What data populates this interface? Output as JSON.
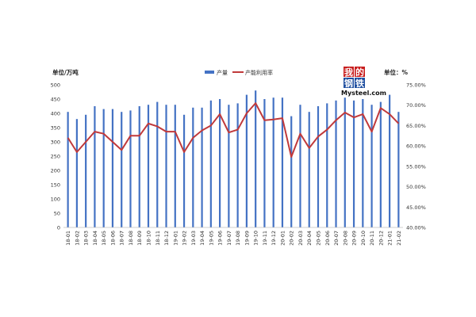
{
  "chart_data": {
    "type": "bar+line",
    "left_unit": "单位/万吨",
    "right_unit": "单位：%",
    "categories": [
      "18-01",
      "18-02",
      "18-03",
      "18-04",
      "18-05",
      "18-06",
      "18-07",
      "18-08",
      "18-09",
      "18-10",
      "18-11",
      "18-12",
      "19-01",
      "19-02",
      "19-03",
      "19-04",
      "19-05",
      "19-06",
      "19-07",
      "19-08",
      "19-09",
      "19-10",
      "19-11",
      "19-12",
      "20-01",
      "20-02",
      "20-03",
      "20-04",
      "20-05",
      "20-06",
      "20-07",
      "20-08",
      "20-09",
      "20-10",
      "20-11",
      "20-12",
      "21-01",
      "21-02"
    ],
    "series": [
      {
        "name": "产量",
        "kind": "bar",
        "axis": "left",
        "color": "#4472C4",
        "values": [
          405,
          380,
          395,
          425,
          415,
          415,
          405,
          410,
          425,
          430,
          440,
          430,
          430,
          395,
          420,
          420,
          445,
          450,
          430,
          435,
          465,
          480,
          450,
          455,
          455,
          390,
          430,
          405,
          425,
          435,
          445,
          455,
          445,
          450,
          430,
          440,
          465,
          405
        ]
      },
      {
        "name": "产能利用率",
        "kind": "line",
        "axis": "right",
        "color": "#C0393B",
        "values": [
          62.0,
          58.5,
          61.0,
          63.5,
          63.0,
          61.0,
          59.0,
          62.5,
          62.5,
          65.5,
          64.8,
          63.5,
          63.5,
          58.5,
          62.0,
          63.8,
          65.0,
          67.8,
          63.3,
          64.0,
          68.0,
          70.5,
          66.3,
          66.5,
          66.8,
          57.3,
          63.0,
          59.5,
          62.3,
          64.0,
          66.3,
          68.2,
          67.0,
          67.8,
          63.5,
          69.3,
          67.8,
          65.5
        ]
      }
    ],
    "y_left": {
      "min": 0,
      "max": 500,
      "step": 50
    },
    "y_right": {
      "min": 40,
      "max": 75,
      "step": 5
    },
    "y_left_ticks": [
      "0",
      "50",
      "100",
      "150",
      "200",
      "250",
      "300",
      "350",
      "400",
      "450",
      "500"
    ],
    "y_right_ticks": [
      "40.00%",
      "45.00%",
      "50.00%",
      "55.00%",
      "60.00%",
      "65.00%",
      "70.00%",
      "75.00%"
    ],
    "legend_position": "top-center",
    "grid": false
  },
  "logo": {
    "chars": [
      "我",
      "的",
      "钢",
      "铁"
    ],
    "text": "Mysteel.com"
  }
}
